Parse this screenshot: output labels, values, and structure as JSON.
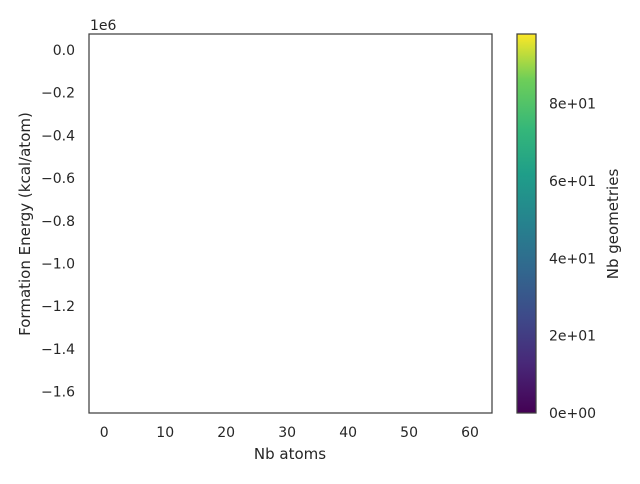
{
  "chart_data": {
    "type": "scatter",
    "title": "",
    "xlabel": "Nb atoms",
    "ylabel": "Formation Energy (kcal/atom)",
    "y_offset_label": "1e6",
    "xlim": [
      -2.5,
      63.6
    ],
    "ylim": [
      -1.7,
      0.075
    ],
    "xticks": [
      0,
      10,
      20,
      30,
      40,
      50,
      60
    ],
    "xtick_labels": [
      "0",
      "10",
      "20",
      "30",
      "40",
      "50",
      "60"
    ],
    "yticks": [
      0.0,
      -0.2,
      -0.4,
      -0.6,
      -0.8,
      -1.0,
      -1.2,
      -1.4,
      -1.6
    ],
    "ytick_labels": [
      "0.0",
      "−0.2",
      "−0.4",
      "−0.6",
      "−0.8",
      "−1.0",
      "−1.2",
      "−1.4",
      "−1.6"
    ],
    "grid": false,
    "points": [],
    "colorbar": {
      "label": "Nb geometries",
      "colormap": "viridis",
      "range": [
        0,
        98
      ],
      "ticks": [
        0,
        20,
        40,
        60,
        80
      ],
      "tick_labels": [
        "0e+00",
        "2e+01",
        "4e+01",
        "6e+01",
        "8e+01"
      ]
    }
  }
}
